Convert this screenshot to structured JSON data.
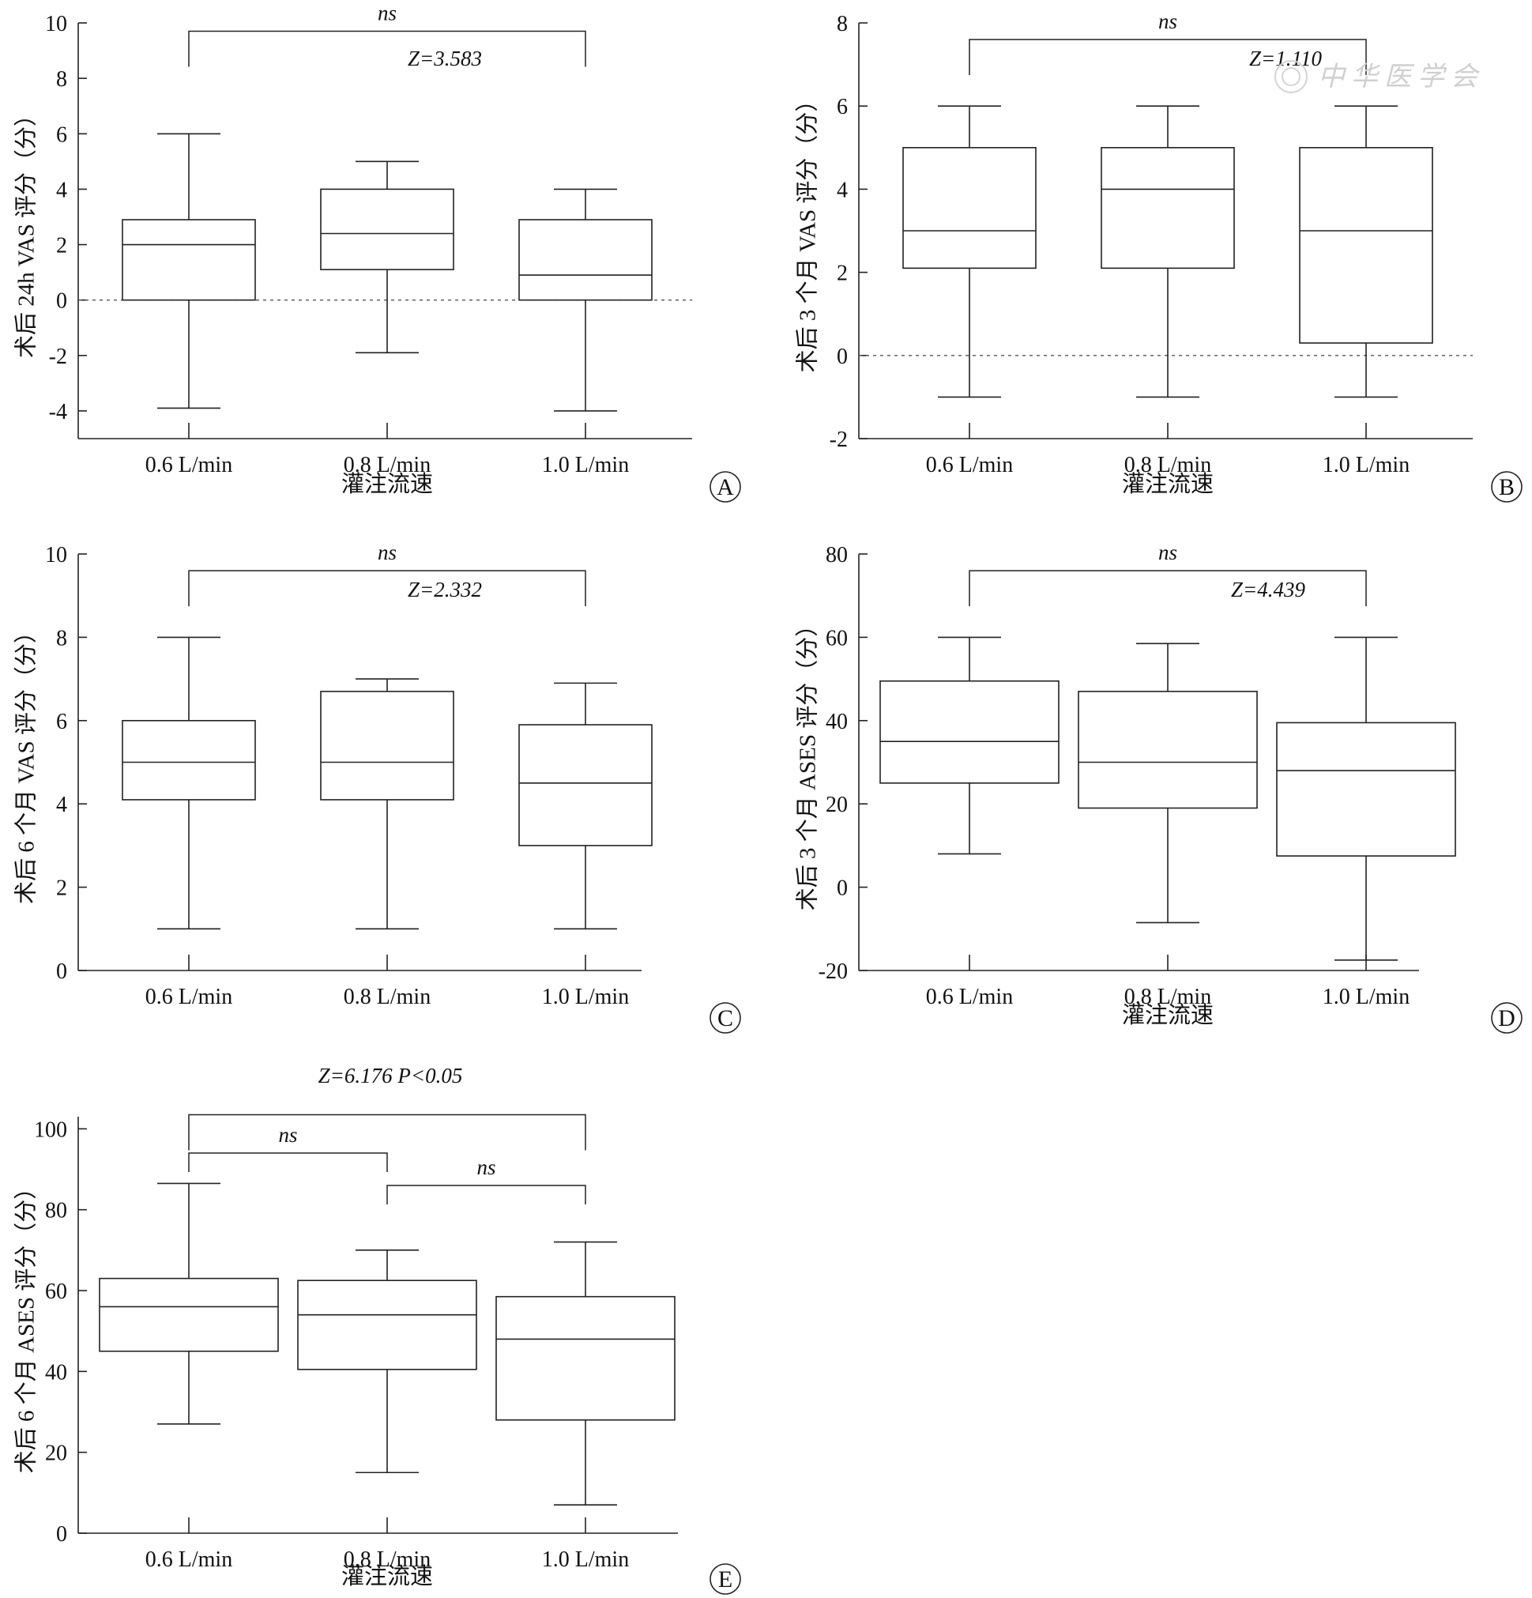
{
  "watermark": "中华医学会",
  "chart_data": [
    {
      "panel": "A",
      "type": "box",
      "ylabel": "术后 24h VAS 评分（分）",
      "xlabel": "灌注流速",
      "categories": [
        "0.6 L/min",
        "0.8 L/min",
        "1.0 L/min"
      ],
      "ylim": [
        -5,
        10
      ],
      "yticks": [
        "-4",
        "-2",
        "0",
        "2",
        "4",
        "6",
        "8",
        "10"
      ],
      "ytick_values": [
        -4,
        -2,
        0,
        2,
        4,
        6,
        8,
        10
      ],
      "zero_line": true,
      "boxes": [
        {
          "min": -3.9,
          "q1": 0,
          "median": 2,
          "q3": 2.9,
          "max": 6
        },
        {
          "min": -1.9,
          "q1": 1.1,
          "median": 2.4,
          "q3": 4,
          "max": 5
        },
        {
          "min": -4,
          "q1": 0,
          "median": 0.9,
          "q3": 2.9,
          "max": 4
        }
      ],
      "brackets": [
        {
          "from": 0,
          "to": 2,
          "level": 9.7,
          "label": "ns"
        }
      ],
      "annotations": [
        "Z=3.583"
      ]
    },
    {
      "panel": "B",
      "type": "box",
      "ylabel": "术后 3 个月 VAS 评分（分）",
      "xlabel": "灌注流速",
      "categories": [
        "0.6 L/min",
        "0.8 L/min",
        "1.0 L/min"
      ],
      "ylim": [
        -2,
        8
      ],
      "yticks": [
        "-2",
        "0",
        "2",
        "4",
        "6",
        "8"
      ],
      "ytick_values": [
        -2,
        0,
        2,
        4,
        6,
        8
      ],
      "zero_line": true,
      "boxes": [
        {
          "min": -1,
          "q1": 2.1,
          "median": 3,
          "q3": 5,
          "max": 6
        },
        {
          "min": -1,
          "q1": 2.1,
          "median": 4,
          "q3": 5,
          "max": 6
        },
        {
          "min": -1,
          "q1": 0.3,
          "median": 3,
          "q3": 5,
          "max": 6
        }
      ],
      "brackets": [
        {
          "from": 0,
          "to": 2,
          "level": 7.6,
          "label": "ns"
        }
      ],
      "annotations": [
        "Z=1.110"
      ]
    },
    {
      "panel": "C",
      "type": "box",
      "ylabel": "术后 6 个月 VAS 评分（分）",
      "xlabel": "",
      "categories": [
        "0.6 L/min",
        "0.8 L/min",
        "1.0 L/min"
      ],
      "ylim": [
        0,
        10
      ],
      "yticks": [
        "0",
        "2",
        "4",
        "6",
        "8",
        "10"
      ],
      "ytick_values": [
        0,
        2,
        4,
        6,
        8,
        10
      ],
      "zero_line": false,
      "boxes": [
        {
          "min": 1,
          "q1": 4.1,
          "median": 5,
          "q3": 6,
          "max": 8
        },
        {
          "min": 1,
          "q1": 4.1,
          "median": 5,
          "q3": 6.7,
          "max": 7
        },
        {
          "min": 1,
          "q1": 3,
          "median": 4.5,
          "q3": 5.9,
          "max": 6.9
        }
      ],
      "brackets": [
        {
          "from": 0,
          "to": 2,
          "level": 9.6,
          "label": "ns"
        }
      ],
      "annotations": [
        "Z=2.332"
      ]
    },
    {
      "panel": "D",
      "type": "box",
      "ylabel": "术后 3 个月 ASES 评分（分）",
      "xlabel": "灌注流速",
      "categories": [
        "0.6 L/min",
        "0.8 L/min",
        "1.0 L/min"
      ],
      "ylim": [
        -20,
        80
      ],
      "yticks": [
        "-20",
        "0",
        "20",
        "40",
        "60",
        "80"
      ],
      "ytick_values": [
        -20,
        0,
        20,
        40,
        60,
        80
      ],
      "zero_line": false,
      "boxes": [
        {
          "min": 8,
          "q1": 25,
          "median": 35,
          "q3": 49.5,
          "max": 60
        },
        {
          "min": -8.5,
          "q1": 19,
          "median": 30,
          "q3": 47,
          "max": 58.5
        },
        {
          "min": -17.5,
          "q1": 7.5,
          "median": 28,
          "q3": 39.5,
          "max": 60
        }
      ],
      "brackets": [
        {
          "from": 0,
          "to": 2,
          "level": 76,
          "label": "ns"
        }
      ],
      "annotations": [
        "Z=4.439"
      ]
    },
    {
      "panel": "E",
      "type": "box",
      "ylabel": "术后 6 个月 ASES 评分（分）",
      "xlabel": "灌注流速",
      "categories": [
        "0.6 L/min",
        "0.8 L/min",
        "1.0 L/min"
      ],
      "ylim": [
        0,
        103
      ],
      "yticks": [
        "0",
        "20",
        "40",
        "60",
        "80",
        "100"
      ],
      "ytick_values": [
        0,
        20,
        40,
        60,
        80,
        100
      ],
      "zero_line": false,
      "boxes": [
        {
          "min": 27,
          "q1": 45,
          "median": 56,
          "q3": 63,
          "max": 86.5
        },
        {
          "min": 15,
          "q1": 40.5,
          "median": 54,
          "q3": 62.5,
          "max": 70
        },
        {
          "min": 7,
          "q1": 28,
          "median": 48,
          "q3": 58.5,
          "max": 72
        }
      ],
      "brackets": [
        {
          "from": 0,
          "to": 2,
          "level": 103.5,
          "label": ""
        },
        {
          "from": 0,
          "to": 1,
          "level": 94,
          "label": "ns"
        },
        {
          "from": 1,
          "to": 2,
          "level": 86,
          "label": "ns"
        }
      ],
      "annotations": [
        "Z=6.176  P<0.05"
      ]
    }
  ]
}
